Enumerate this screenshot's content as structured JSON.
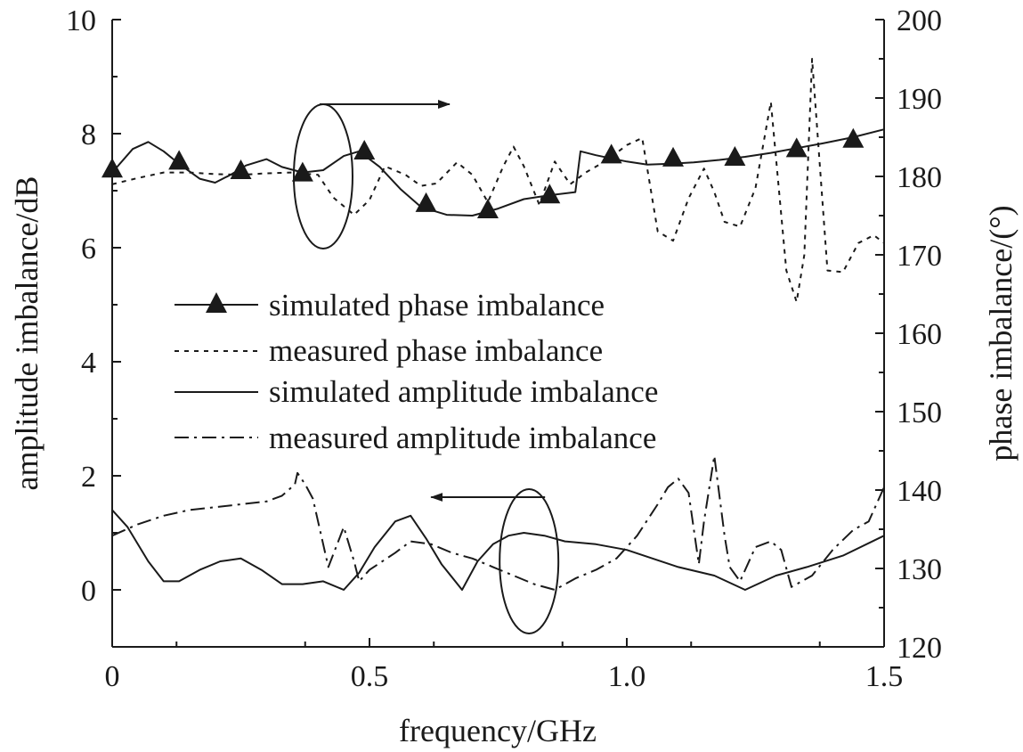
{
  "chart_data": {
    "type": "line",
    "title": "",
    "xlabel": "frequency/GHz",
    "ylabel_left": "amplitude imbalance/dB",
    "ylabel_right": "phase imbalance/(°)",
    "xlim": [
      0,
      1.5
    ],
    "ylim_left": [
      -1,
      10
    ],
    "ylim_right": [
      120,
      200
    ],
    "x_ticks": [
      0,
      0.5,
      1.0,
      1.5
    ],
    "x_tick_labels": [
      "0",
      "0.5",
      "1.0",
      "1.5"
    ],
    "y_left_ticks": [
      0,
      2,
      4,
      6,
      8,
      10
    ],
    "y_left_tick_labels": [
      "0",
      "2",
      "4",
      "6",
      "8",
      "10"
    ],
    "y_right_ticks": [
      120,
      130,
      140,
      150,
      160,
      170,
      180,
      190,
      200
    ],
    "y_right_tick_labels": [
      "120",
      "130",
      "140",
      "150",
      "160",
      "170",
      "180",
      "190",
      "200"
    ],
    "grid": false,
    "legend_position": "center-left",
    "series": [
      {
        "name": "simulated phase imbalance",
        "axis": "right",
        "style": "solid-triangle",
        "x": [
          0,
          0.04,
          0.07,
          0.1,
          0.13,
          0.17,
          0.2,
          0.23,
          0.26,
          0.3,
          0.33,
          0.37,
          0.41,
          0.45,
          0.48,
          0.52,
          0.56,
          0.6,
          0.65,
          0.7,
          0.75,
          0.8,
          0.85,
          0.9,
          0.91,
          0.94,
          0.97,
          1.0,
          1.04,
          1.08,
          1.13,
          1.18,
          1.23,
          1.28,
          1.33,
          1.38,
          1.44,
          1.5
        ],
        "y": [
          180.5,
          183.5,
          184.4,
          183.2,
          181.6,
          179.7,
          179.2,
          180.2,
          181.4,
          182.2,
          181.2,
          180.5,
          180.8,
          182.6,
          183.2,
          181.2,
          178.4,
          176.1,
          175.1,
          175.0,
          175.9,
          177.1,
          177.6,
          178.0,
          183.2,
          182.7,
          182.3,
          181.9,
          181.5,
          181.6,
          181.8,
          182.1,
          182.5,
          183.0,
          183.6,
          184.2,
          185.0,
          186.0
        ],
        "marker_x": [
          0,
          0.13,
          0.25,
          0.37,
          0.49,
          0.61,
          0.73,
          0.85,
          0.97,
          1.09,
          1.21,
          1.33,
          1.44
        ],
        "marker_y": [
          181.0,
          182.0,
          180.8,
          180.5,
          183.3,
          176.6,
          175.8,
          177.7,
          182.8,
          182.4,
          182.5,
          183.6,
          184.8
        ]
      },
      {
        "name": "measured phase imbalance",
        "axis": "right",
        "style": "dotted",
        "x": [
          0,
          0.05,
          0.1,
          0.15,
          0.2,
          0.25,
          0.3,
          0.35,
          0.4,
          0.43,
          0.47,
          0.5,
          0.53,
          0.57,
          0.6,
          0.63,
          0.67,
          0.7,
          0.73,
          0.76,
          0.78,
          0.8,
          0.83,
          0.86,
          0.89,
          0.92,
          0.96,
          1.0,
          1.03,
          1.06,
          1.09,
          1.12,
          1.15,
          1.17,
          1.19,
          1.22,
          1.25,
          1.28,
          1.31,
          1.33,
          1.345,
          1.36,
          1.39,
          1.42,
          1.45,
          1.48,
          1.5
        ],
        "y": [
          179.0,
          179.8,
          180.5,
          180.5,
          180.3,
          180.2,
          180.4,
          180.5,
          180.2,
          177.3,
          175.1,
          177.0,
          181.3,
          180.2,
          178.8,
          179.1,
          181.8,
          180.2,
          176.7,
          181.3,
          183.8,
          181.3,
          176.4,
          181.9,
          179.0,
          180.5,
          182.0,
          184.0,
          184.9,
          173.0,
          171.8,
          177.2,
          181.0,
          178.0,
          174.2,
          173.6,
          178.5,
          189.5,
          168.0,
          164.0,
          170.0,
          195.0,
          168.0,
          167.8,
          171.5,
          172.5,
          171.5
        ]
      },
      {
        "name": "simulated amplitude imbalance",
        "axis": "left",
        "style": "solid",
        "x": [
          0,
          0.03,
          0.07,
          0.1,
          0.13,
          0.17,
          0.21,
          0.25,
          0.29,
          0.33,
          0.37,
          0.41,
          0.45,
          0.48,
          0.51,
          0.55,
          0.58,
          0.61,
          0.64,
          0.68,
          0.71,
          0.74,
          0.77,
          0.8,
          0.84,
          0.88,
          0.94,
          1.0,
          1.05,
          1.1,
          1.17,
          1.23,
          1.29,
          1.35,
          1.42,
          1.5
        ],
        "y": [
          1.4,
          1.1,
          0.5,
          0.15,
          0.15,
          0.35,
          0.5,
          0.55,
          0.35,
          0.1,
          0.1,
          0.15,
          0.0,
          0.3,
          0.75,
          1.2,
          1.3,
          0.9,
          0.45,
          0.0,
          0.5,
          0.8,
          0.95,
          1.0,
          0.95,
          0.85,
          0.8,
          0.7,
          0.55,
          0.4,
          0.25,
          0.0,
          0.25,
          0.4,
          0.6,
          0.95
        ]
      },
      {
        "name": "measured amplitude imbalance",
        "axis": "left",
        "style": "dash-dot",
        "x": [
          0,
          0.05,
          0.1,
          0.15,
          0.2,
          0.25,
          0.3,
          0.33,
          0.355,
          0.36,
          0.375,
          0.39,
          0.4,
          0.42,
          0.45,
          0.47,
          0.48,
          0.5,
          0.55,
          0.58,
          0.62,
          0.66,
          0.7,
          0.74,
          0.78,
          0.82,
          0.86,
          0.9,
          0.94,
          0.98,
          1.02,
          1.06,
          1.08,
          1.1,
          1.12,
          1.14,
          1.15,
          1.17,
          1.19,
          1.2,
          1.22,
          1.25,
          1.28,
          1.3,
          1.32,
          1.36,
          1.4,
          1.44,
          1.47,
          1.5
        ],
        "y": [
          0.95,
          1.15,
          1.3,
          1.4,
          1.45,
          1.5,
          1.55,
          1.65,
          1.85,
          2.05,
          1.85,
          1.6,
          1.2,
          0.4,
          1.1,
          0.5,
          0.15,
          0.35,
          0.65,
          0.85,
          0.8,
          0.65,
          0.55,
          0.4,
          0.25,
          0.1,
          0.0,
          0.2,
          0.35,
          0.55,
          0.95,
          1.5,
          1.8,
          1.95,
          1.7,
          0.45,
          1.2,
          2.35,
          0.95,
          0.4,
          0.15,
          0.75,
          0.85,
          0.7,
          0.05,
          0.25,
          0.7,
          1.05,
          1.2,
          1.8
        ]
      }
    ],
    "legend": [
      {
        "label": "simulated phase imbalance",
        "style": "solid-triangle"
      },
      {
        "label": "measured phase imbalance",
        "style": "dotted"
      },
      {
        "label": "simulated amplitude imbalance",
        "style": "solid"
      },
      {
        "label": "measured amplitude imbalance",
        "style": "dash-dot"
      }
    ],
    "annotations": [
      {
        "type": "ellipse-arrow",
        "axis": "right",
        "direction": "right",
        "x": 0.41,
        "y": 180,
        "meaning": "phase curves use right axis"
      },
      {
        "type": "ellipse-arrow",
        "axis": "left",
        "direction": "left",
        "x": 0.81,
        "y": 0.5,
        "meaning": "amplitude curves use left axis"
      }
    ]
  }
}
